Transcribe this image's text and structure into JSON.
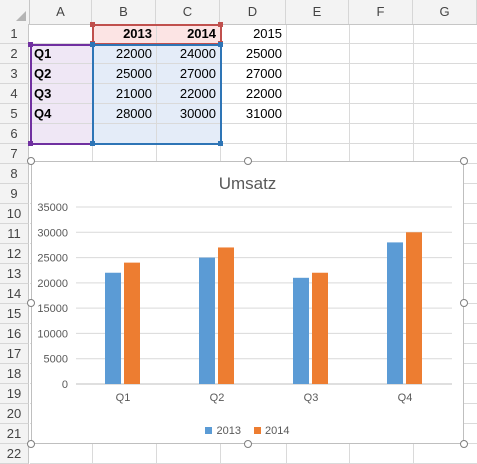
{
  "columns": [
    "A",
    "B",
    "C",
    "D",
    "E",
    "F",
    "G"
  ],
  "rows": [
    "1",
    "2",
    "3",
    "4",
    "5",
    "6",
    "7",
    "8",
    "9",
    "10",
    "11",
    "12",
    "13",
    "14",
    "15",
    "16",
    "17",
    "18",
    "19",
    "20",
    "21",
    "22"
  ],
  "cells": {
    "B1": "2013",
    "C1": "2014",
    "D1": "2015",
    "A2": "Q1",
    "B2": "22000",
    "C2": "24000",
    "D2": "25000",
    "A3": "Q2",
    "B3": "25000",
    "C3": "27000",
    "D3": "27000",
    "A4": "Q3",
    "B4": "21000",
    "C4": "22000",
    "D4": "22000",
    "A5": "Q4",
    "B5": "28000",
    "C5": "30000",
    "D5": "31000"
  },
  "colors": {
    "series_2013": "#5b9bd5",
    "series_2014": "#ed7d31",
    "range_series_name": "#c0504d",
    "range_category": "#7030a0",
    "range_values": "#2e75b6"
  },
  "chart_data": {
    "type": "bar",
    "title": "Umsatz",
    "categories": [
      "Q1",
      "Q2",
      "Q3",
      "Q4"
    ],
    "series": [
      {
        "name": "2013",
        "values": [
          22000,
          25000,
          21000,
          28000
        ]
      },
      {
        "name": "2014",
        "values": [
          24000,
          27000,
          22000,
          30000
        ]
      }
    ],
    "yticks": [
      "0",
      "5000",
      "10000",
      "15000",
      "20000",
      "25000",
      "30000",
      "35000"
    ],
    "ylim": [
      0,
      35000
    ],
    "grid": true,
    "legend_position": "bottom"
  }
}
